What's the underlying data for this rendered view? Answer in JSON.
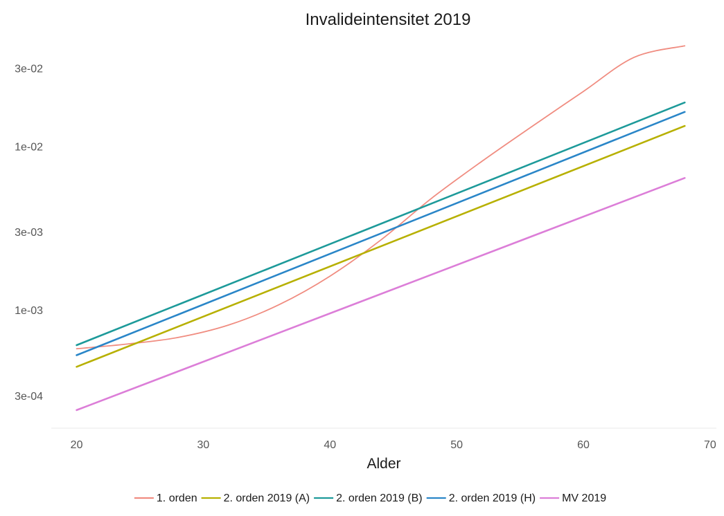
{
  "chart_data": {
    "type": "line",
    "title": "Invalideintensitet 2019",
    "xlabel": "Alder",
    "ylabel": "",
    "y_scale": "log",
    "xlim": [
      18,
      70.5
    ],
    "ylim": [
      0.00019,
      0.049
    ],
    "x_ticks": [
      20,
      30,
      40,
      50,
      60,
      70
    ],
    "x_tick_labels": [
      "20",
      "30",
      "40",
      "50",
      "60",
      "70"
    ],
    "y_ticks": [
      0.0003,
      0.001,
      0.003,
      0.01,
      0.03
    ],
    "y_tick_labels": [
      "3e-04",
      "1e-03",
      "3e-03",
      "1e-02",
      "3e-02"
    ],
    "grid": false,
    "legend_position": "bottom",
    "series": [
      {
        "name": "1. orden",
        "color": "#f08c80",
        "x": [
          20,
          24,
          28,
          32,
          36,
          40,
          44,
          48,
          52,
          56,
          60,
          64,
          68
        ],
        "values": [
          0.00058,
          0.00062,
          0.00068,
          0.00081,
          0.00108,
          0.00161,
          0.00267,
          0.0048,
          0.0081,
          0.0133,
          0.0216,
          0.0349,
          0.041
        ]
      },
      {
        "name": "2. orden 2019 (A)",
        "color": "#b7b000",
        "x": [
          20,
          68
        ],
        "values": [
          0.00045,
          0.0133
        ]
      },
      {
        "name": "2. orden 2019 (B)",
        "color": "#1d9a9a",
        "x": [
          20,
          68
        ],
        "values": [
          0.00061,
          0.0185
        ]
      },
      {
        "name": "2. orden 2019 (H)",
        "color": "#2a86c8",
        "x": [
          20,
          68
        ],
        "values": [
          0.00053,
          0.0162
        ]
      },
      {
        "name": "MV 2019",
        "color": "#dc7ed8",
        "x": [
          20,
          68
        ],
        "values": [
          0.000245,
          0.0064
        ]
      }
    ]
  }
}
